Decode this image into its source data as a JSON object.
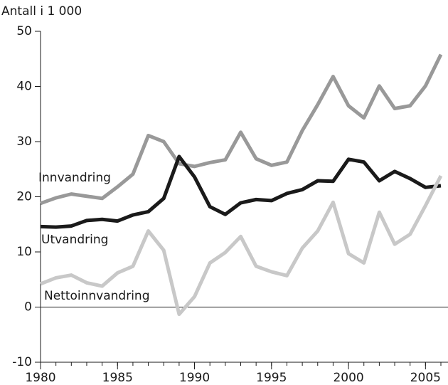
{
  "chart_data": {
    "type": "line",
    "y_label": "Antall i 1 000",
    "x": [
      1980,
      1981,
      1982,
      1983,
      1984,
      1985,
      1986,
      1987,
      1988,
      1989,
      1990,
      1991,
      1992,
      1993,
      1994,
      1995,
      1996,
      1997,
      1998,
      1999,
      2000,
      2001,
      2002,
      2003,
      2004,
      2005,
      2006
    ],
    "series": [
      {
        "name": "Innvandring",
        "color": "#999999",
        "values": [
          18.8,
          19.8,
          20.5,
          20.1,
          19.7,
          21.8,
          24.1,
          31.1,
          30.0,
          26.0,
          25.5,
          26.2,
          26.7,
          31.7,
          26.9,
          25.7,
          26.3,
          32.0,
          36.7,
          41.8,
          36.5,
          34.3,
          40.1,
          36.0,
          36.5,
          40.1,
          45.8
        ]
      },
      {
        "name": "Utvandring",
        "color": "#1a1a1a",
        "values": [
          14.6,
          14.5,
          14.7,
          15.7,
          15.9,
          15.6,
          16.7,
          17.3,
          19.7,
          27.3,
          23.6,
          18.2,
          16.8,
          18.9,
          19.5,
          19.3,
          20.6,
          21.3,
          22.9,
          22.8,
          26.8,
          26.3,
          22.9,
          24.6,
          23.3,
          21.7,
          22.0
        ]
      },
      {
        "name": "Nettoinnvandring",
        "color": "#c8c8c8",
        "values": [
          4.2,
          5.3,
          5.8,
          4.4,
          3.8,
          6.2,
          7.4,
          13.8,
          10.3,
          -1.3,
          1.9,
          8.0,
          9.9,
          12.8,
          7.4,
          6.4,
          5.7,
          10.7,
          13.8,
          19.0,
          9.7,
          8.0,
          17.2,
          11.4,
          13.2,
          18.4,
          23.8
        ]
      }
    ],
    "xlim": [
      1980,
      2006
    ],
    "xticks": [
      1980,
      1985,
      1990,
      1995,
      2000,
      2005
    ],
    "ylim": [
      -10,
      50
    ],
    "yticks": [
      -10,
      0,
      10,
      20,
      30,
      40,
      50
    ]
  }
}
